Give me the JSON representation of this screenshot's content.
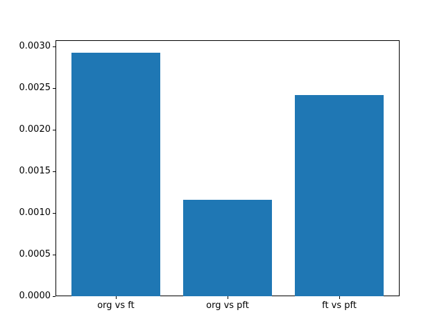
{
  "figure": {
    "background": "#ffffff",
    "title": ""
  },
  "chart_data": {
    "type": "bar",
    "categories": [
      "org vs ft",
      "org vs pft",
      "ft vs pft"
    ],
    "values": [
      0.00293,
      0.00116,
      0.00242
    ],
    "title": "",
    "xlabel": "",
    "ylabel": "",
    "ylim": [
      0,
      0.003077
    ],
    "yticks": [
      0,
      0.0005,
      0.001,
      0.0015,
      0.002,
      0.0025,
      0.003
    ],
    "ytick_labels": [
      "0.0000",
      "0.0005",
      "0.0010",
      "0.0015",
      "0.0020",
      "0.0025",
      "0.0030"
    ],
    "bar_color": "#1f77b4",
    "bar_width_fraction": 0.8,
    "grid": false,
    "legend": null
  }
}
